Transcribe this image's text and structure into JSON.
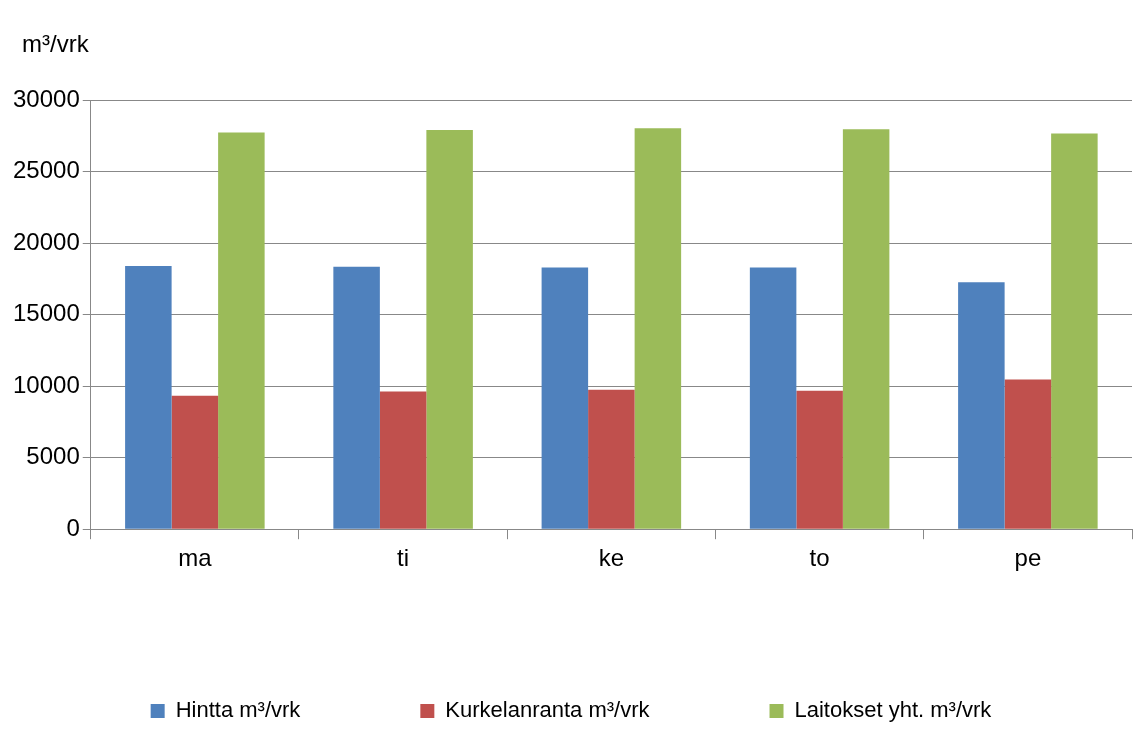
{
  "chart_data": {
    "type": "bar",
    "ylabel": "m³/vrk",
    "categories": [
      "ma",
      "ti",
      "ke",
      "to",
      "pe"
    ],
    "series": [
      {
        "name": "Hintta m³/vrk",
        "color": "#4f81bd",
        "values": [
          18400,
          18340,
          18300,
          18300,
          17260
        ]
      },
      {
        "name": "Kurkelanranta m³/vrk",
        "color": "#c0504d",
        "values": [
          9320,
          9620,
          9740,
          9680,
          10460
        ]
      },
      {
        "name": "Laitokset yht. m³/vrk",
        "color": "#9bbb59",
        "values": [
          27720,
          27900,
          28020,
          27960,
          27660
        ]
      }
    ],
    "ylim": [
      0,
      30000
    ],
    "yticks": [
      0,
      5000,
      10000,
      15000,
      20000,
      25000,
      30000
    ],
    "grid": "y",
    "legend": "bottom"
  }
}
